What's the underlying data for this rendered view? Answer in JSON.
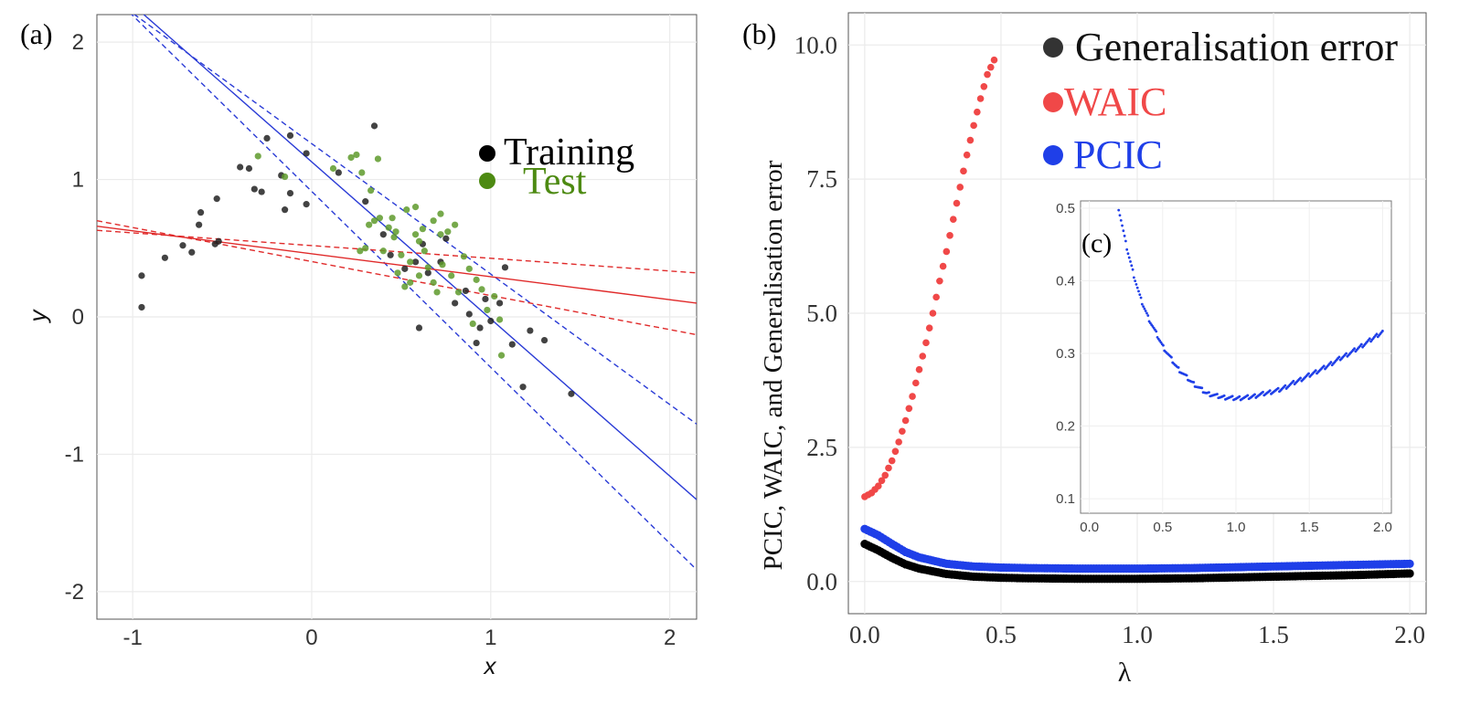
{
  "chart_data": [
    {
      "panel": "(a)",
      "type": "scatter",
      "xlabel": "x",
      "ylabel": "y",
      "xlim": [
        -1.2,
        2.15
      ],
      "ylim": [
        -2.2,
        2.2
      ],
      "xticks": [
        "-1",
        "0",
        "1",
        "2"
      ],
      "yticks": [
        "-2",
        "-1",
        "0",
        "1",
        "2"
      ],
      "legend": {
        "placement": "top-right",
        "entries": [
          {
            "label": "Training",
            "color": "#000000"
          },
          {
            "label": "Test",
            "color": "#4d8a12"
          }
        ]
      },
      "series": [
        {
          "name": "Training",
          "color": "#222222",
          "points": [
            [
              -0.95,
              0.07
            ],
            [
              -0.95,
              0.3
            ],
            [
              -0.82,
              0.43
            ],
            [
              -0.72,
              0.52
            ],
            [
              -0.67,
              0.47
            ],
            [
              -0.63,
              0.67
            ],
            [
              -0.62,
              0.76
            ],
            [
              -0.53,
              0.86
            ],
            [
              -0.54,
              0.53
            ],
            [
              -0.52,
              0.55
            ],
            [
              -0.4,
              1.09
            ],
            [
              -0.35,
              1.08
            ],
            [
              -0.32,
              0.93
            ],
            [
              -0.28,
              0.91
            ],
            [
              -0.25,
              1.3
            ],
            [
              -0.17,
              1.03
            ],
            [
              -0.15,
              0.78
            ],
            [
              -0.12,
              0.9
            ],
            [
              -0.12,
              1.32
            ],
            [
              -0.03,
              0.82
            ],
            [
              -0.03,
              1.19
            ],
            [
              0.15,
              1.05
            ],
            [
              0.3,
              0.84
            ],
            [
              0.35,
              1.39
            ],
            [
              0.4,
              0.6
            ],
            [
              0.44,
              0.45
            ],
            [
              0.52,
              0.35
            ],
            [
              0.58,
              0.4
            ],
            [
              0.6,
              -0.08
            ],
            [
              0.62,
              0.53
            ],
            [
              0.65,
              0.32
            ],
            [
              0.72,
              0.4
            ],
            [
              0.75,
              0.57
            ],
            [
              0.8,
              0.1
            ],
            [
              0.86,
              0.19
            ],
            [
              0.88,
              0.02
            ],
            [
              0.92,
              -0.19
            ],
            [
              0.94,
              -0.08
            ],
            [
              0.97,
              0.13
            ],
            [
              1.0,
              -0.03
            ],
            [
              1.05,
              0.1
            ],
            [
              1.08,
              0.36
            ],
            [
              1.12,
              -0.2
            ],
            [
              1.18,
              -0.51
            ],
            [
              1.22,
              -0.1
            ],
            [
              1.3,
              -0.17
            ],
            [
              1.45,
              -0.56
            ]
          ]
        },
        {
          "name": "Test",
          "color": "#5e9a2b",
          "points": [
            [
              0.12,
              1.08
            ],
            [
              0.22,
              1.16
            ],
            [
              0.25,
              1.18
            ],
            [
              0.28,
              1.05
            ],
            [
              0.33,
              0.92
            ],
            [
              0.37,
              1.15
            ],
            [
              0.32,
              0.67
            ],
            [
              0.38,
              0.72
            ],
            [
              0.43,
              0.65
            ],
            [
              0.46,
              0.58
            ],
            [
              0.5,
              0.45
            ],
            [
              0.47,
              0.62
            ],
            [
              0.53,
              0.78
            ],
            [
              0.58,
              0.8
            ],
            [
              0.6,
              0.55
            ],
            [
              0.63,
              0.48
            ],
            [
              0.68,
              0.7
            ],
            [
              0.72,
              0.6
            ],
            [
              0.72,
              0.75
            ],
            [
              0.76,
              0.62
            ],
            [
              0.8,
              0.67
            ],
            [
              0.55,
              0.25
            ],
            [
              0.6,
              0.3
            ],
            [
              0.65,
              0.36
            ],
            [
              0.68,
              0.25
            ],
            [
              0.7,
              0.18
            ],
            [
              0.73,
              0.38
            ],
            [
              0.78,
              0.3
            ],
            [
              0.85,
              0.44
            ],
            [
              0.88,
              0.35
            ],
            [
              0.92,
              0.27
            ],
            [
              0.95,
              0.2
            ],
            [
              0.98,
              0.05
            ],
            [
              1.02,
              0.15
            ],
            [
              1.05,
              -0.02
            ],
            [
              1.06,
              -0.28
            ],
            [
              0.82,
              0.18
            ],
            [
              0.9,
              -0.05
            ],
            [
              0.55,
              0.4
            ],
            [
              0.48,
              0.32
            ],
            [
              0.52,
              0.22
            ],
            [
              0.58,
              0.6
            ],
            [
              0.4,
              0.48
            ],
            [
              0.35,
              0.7
            ],
            [
              0.45,
              0.72
            ],
            [
              0.62,
              0.64
            ],
            [
              0.27,
              0.48
            ],
            [
              0.3,
              0.5
            ],
            [
              -0.3,
              1.17
            ],
            [
              -0.15,
              1.02
            ]
          ]
        }
      ],
      "lines": [
        {
          "name": "blue fit",
          "color": "#2a3bd6",
          "style": "solid",
          "x": [
            -1.2,
            2.15
          ],
          "y": [
            2.5,
            -1.33
          ]
        },
        {
          "name": "blue band upper",
          "color": "#2a3bd6",
          "style": "dashed",
          "x": [
            -1.2,
            2.15
          ],
          "y": [
            2.4,
            -0.78
          ]
        },
        {
          "name": "blue band lower",
          "color": "#2a3bd6",
          "style": "dashed",
          "x": [
            -1.2,
            2.15
          ],
          "y": [
            2.45,
            -1.84
          ]
        },
        {
          "name": "red fit",
          "color": "#e02a2a",
          "style": "solid",
          "x": [
            -1.2,
            2.15
          ],
          "y": [
            0.66,
            0.1
          ]
        },
        {
          "name": "red band upper",
          "color": "#e02a2a",
          "style": "dashed",
          "x": [
            -1.2,
            2.15
          ],
          "y": [
            0.63,
            0.32
          ]
        },
        {
          "name": "red band lower",
          "color": "#e02a2a",
          "style": "dashed",
          "x": [
            -1.2,
            2.15
          ],
          "y": [
            0.7,
            -0.13
          ]
        }
      ]
    },
    {
      "panel": "(b)",
      "type": "scatter",
      "xlabel": "λ",
      "ylabel": "PCIC, WAIC, and Generalisation error",
      "xlim": [
        -0.06,
        2.06
      ],
      "ylim": [
        -0.6,
        10.6
      ],
      "xticks": [
        "0.0",
        "0.5",
        "1.0",
        "1.5",
        "2.0"
      ],
      "yticks": [
        "0.0",
        "2.5",
        "5.0",
        "7.5",
        "10.0"
      ],
      "legend": {
        "placement": "top-right",
        "entries": [
          {
            "label": "Generalisation error",
            "color": "#333333"
          },
          {
            "label": "WAIC",
            "color": "#f04848"
          },
          {
            "label": "PCIC",
            "color": "#1f3fe8"
          }
        ]
      },
      "series": [
        {
          "name": "Generalisation error",
          "color": "#000000",
          "x": [
            0.0,
            0.05,
            0.1,
            0.15,
            0.2,
            0.3,
            0.4,
            0.5,
            0.6,
            0.8,
            1.0,
            1.2,
            1.4,
            1.6,
            1.8,
            2.0
          ],
          "y": [
            0.7,
            0.58,
            0.44,
            0.32,
            0.24,
            0.14,
            0.09,
            0.07,
            0.06,
            0.05,
            0.05,
            0.06,
            0.08,
            0.1,
            0.12,
            0.15
          ]
        },
        {
          "name": "WAIC",
          "color": "#f04848",
          "x": [
            0.0,
            0.025,
            0.05,
            0.075,
            0.1,
            0.125,
            0.15,
            0.175,
            0.2,
            0.225,
            0.25,
            0.275,
            0.3,
            0.325,
            0.35,
            0.375,
            0.4,
            0.425,
            0.45,
            0.475
          ],
          "y": [
            1.58,
            1.65,
            1.78,
            1.98,
            2.25,
            2.6,
            3.0,
            3.45,
            3.95,
            4.45,
            5.0,
            5.6,
            6.15,
            6.75,
            7.35,
            7.95,
            8.5,
            9.0,
            9.45,
            9.72
          ]
        },
        {
          "name": "PCIC",
          "color": "#1f3fe8",
          "x": [
            0.0,
            0.05,
            0.1,
            0.15,
            0.2,
            0.3,
            0.4,
            0.5,
            0.6,
            0.8,
            1.0,
            1.2,
            1.4,
            1.6,
            1.8,
            2.0
          ],
          "y": [
            0.98,
            0.86,
            0.7,
            0.55,
            0.45,
            0.33,
            0.28,
            0.26,
            0.25,
            0.24,
            0.24,
            0.25,
            0.27,
            0.29,
            0.31,
            0.33
          ]
        }
      ]
    },
    {
      "panel": "(c)",
      "type": "scatter",
      "xlabel": "",
      "ylabel": "",
      "xlim": [
        -0.06,
        2.06
      ],
      "ylim": [
        0.08,
        0.51
      ],
      "xticks": [
        "0.0",
        "0.5",
        "1.0",
        "1.5",
        "2.0"
      ],
      "yticks": [
        "0.1",
        "0.2",
        "0.3",
        "0.4",
        "0.5"
      ],
      "series": [
        {
          "name": "PCIC",
          "color": "#1f3fe8",
          "x": [
            0.2,
            0.25,
            0.3,
            0.35,
            0.4,
            0.5,
            0.6,
            0.7,
            0.8,
            0.9,
            1.0,
            1.1,
            1.2,
            1.3,
            1.4,
            1.5,
            1.6,
            1.7,
            1.8,
            1.9,
            2.0
          ],
          "y": [
            0.5,
            0.45,
            0.41,
            0.375,
            0.35,
            0.31,
            0.28,
            0.26,
            0.245,
            0.24,
            0.238,
            0.24,
            0.245,
            0.25,
            0.26,
            0.27,
            0.28,
            0.292,
            0.303,
            0.316,
            0.33
          ]
        }
      ]
    }
  ]
}
